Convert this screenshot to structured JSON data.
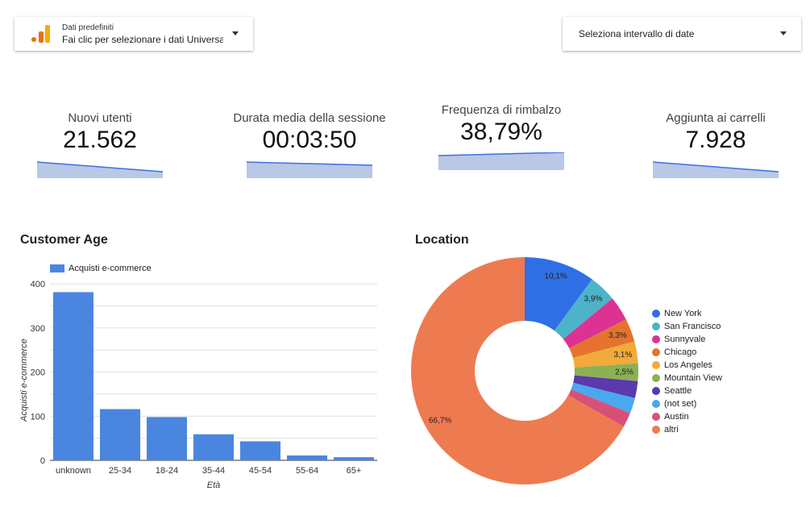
{
  "header": {
    "data_source_label": "Dati predefiniti",
    "data_source_value": "Fai clic per selezionare i dati Universa",
    "date_range": "Seleziona intervallo di date"
  },
  "kpis": [
    {
      "title": "Nuovi utenti",
      "value": "21.562",
      "trend": "down"
    },
    {
      "title": "Durata media della sessione",
      "value": "00:03:50",
      "trend": "down"
    },
    {
      "title": "Frequenza di rimbalzo",
      "value": "38,79%",
      "trend": "up"
    },
    {
      "title": "Aggiunta ai carrelli",
      "value": "7.928",
      "trend": "down"
    }
  ],
  "chart_data": [
    {
      "type": "bar",
      "title": "Customer Age",
      "legend": "Acquisti e-commerce",
      "xlabel": "Età",
      "ylabel": "Acquisti e-commerce",
      "categories": [
        "unknown",
        "25-34",
        "18-24",
        "35-44",
        "45-54",
        "55-64",
        "65+"
      ],
      "values": [
        381,
        116,
        98,
        59,
        43,
        11,
        7
      ],
      "ylim": [
        0,
        400
      ],
      "yticks": [
        "0",
        "100",
        "200",
        "300",
        "400"
      ],
      "color": "#4a86e0"
    },
    {
      "type": "pie",
      "title": "Location",
      "donut": true,
      "slices": [
        {
          "name": "New York",
          "value": 10.1,
          "label": "10,1%",
          "color": "#2f6fe6"
        },
        {
          "name": "San Francisco",
          "value": 3.9,
          "label": "3,9%",
          "color": "#4db3c8"
        },
        {
          "name": "Sunnyvale",
          "value": 3.5,
          "label": "",
          "color": "#dc3293"
        },
        {
          "name": "Chicago",
          "value": 3.3,
          "label": "3,3%",
          "color": "#e5732f"
        },
        {
          "name": "Los Angeles",
          "value": 3.1,
          "label": "3,1%",
          "color": "#f2aa3b"
        },
        {
          "name": "Mountain View",
          "value": 2.5,
          "label": "2,5%",
          "color": "#8bb152"
        },
        {
          "name": "Seattle",
          "value": 2.4,
          "label": "",
          "color": "#5a3aad"
        },
        {
          "name": "(not set)",
          "value": 2.2,
          "label": "",
          "color": "#4aa8ef"
        },
        {
          "name": "Austin",
          "value": 2.1,
          "label": "",
          "color": "#d85078"
        },
        {
          "name": "altri",
          "value": 66.7,
          "label": "66,7%",
          "color": "#ee7a50"
        }
      ]
    }
  ]
}
